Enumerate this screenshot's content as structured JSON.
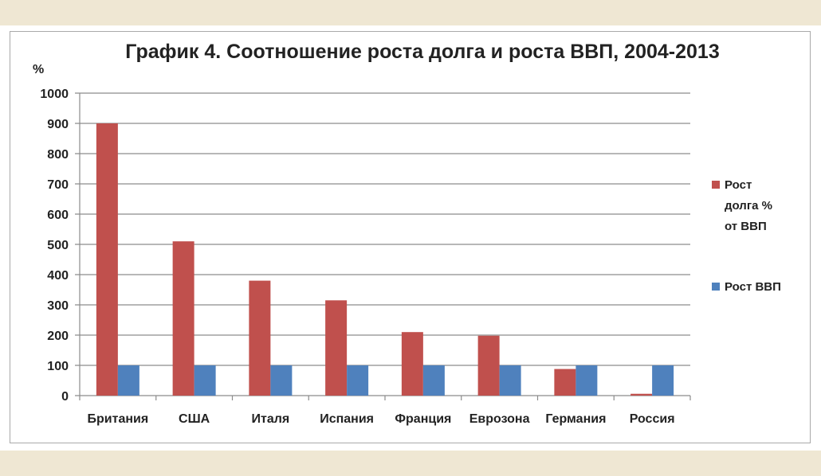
{
  "chart_data": {
    "type": "bar",
    "title": "График 4. Соотношение роста долга и роста ВВП, 2004-2013",
    "ylabel": "%",
    "xlabel": "",
    "ylim": [
      0,
      1000
    ],
    "yticks": [
      0,
      100,
      200,
      300,
      400,
      500,
      600,
      700,
      800,
      900,
      1000
    ],
    "categories": [
      "Британия",
      "США",
      "Италя",
      "Испания",
      "Франция",
      "Еврозона",
      "Германия",
      "Россия"
    ],
    "series": [
      {
        "name": "Рост долга % от ВВП",
        "legend_lines": [
          "Рост",
          "долга %",
          "от ВВП"
        ],
        "color": "#c0504d",
        "values": [
          900,
          510,
          380,
          315,
          210,
          198,
          88,
          6
        ]
      },
      {
        "name": "Рост ВВП",
        "legend_lines": [
          "Рост ВВП"
        ],
        "color": "#4f81bd",
        "values": [
          100,
          100,
          100,
          100,
          100,
          100,
          100,
          100
        ]
      }
    ],
    "grid": true,
    "legend_position": "right"
  }
}
